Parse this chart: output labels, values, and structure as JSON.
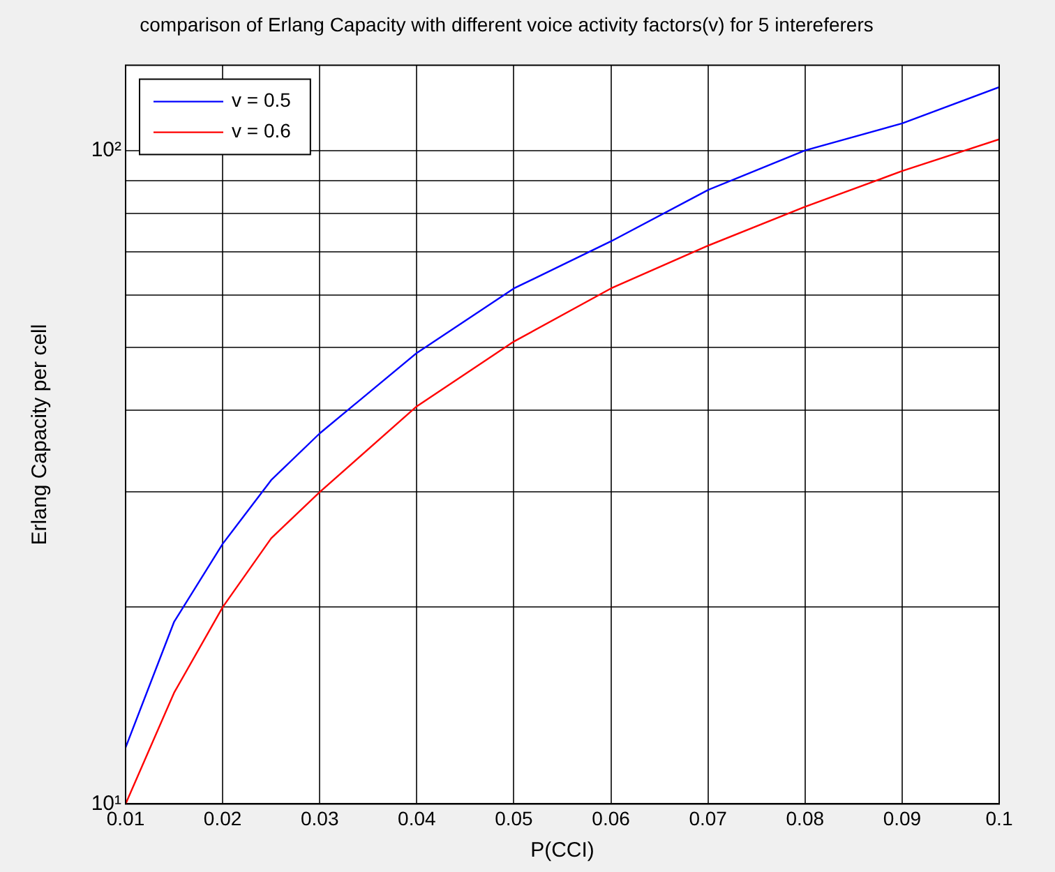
{
  "chart_data": {
    "type": "line",
    "title": "comparison of Erlang Capacity with different voice activity factors(v) for 5 intereferers",
    "xlabel": "P(CCI)",
    "ylabel": "Erlang Capacity per cell",
    "x": [
      0.01,
      0.015,
      0.02,
      0.025,
      0.03,
      0.04,
      0.05,
      0.06,
      0.07,
      0.08,
      0.09,
      0.1
    ],
    "series": [
      {
        "name": "v = 0.5",
        "color": "#0000ff",
        "values": [
          12.2,
          19,
          25,
          31.3,
          36.9,
          49,
          61.5,
          72.6,
          87,
          100,
          110,
          125
        ]
      },
      {
        "name": "v = 0.6",
        "color": "#ff0000",
        "values": [
          10,
          14.8,
          20,
          25.5,
          30,
          40.6,
          51,
          61.5,
          71.5,
          82,
          93,
          104
        ]
      }
    ],
    "xlim": [
      0.01,
      0.1
    ],
    "xticks": [
      0.01,
      0.02,
      0.03,
      0.04,
      0.05,
      0.06,
      0.07,
      0.08,
      0.09,
      0.1
    ],
    "ylim": [
      10,
      135
    ],
    "yticks": [
      {
        "value": 10,
        "label": "10¹"
      },
      {
        "value": 20,
        "label": null
      },
      {
        "value": 30,
        "label": null
      },
      {
        "value": 40,
        "label": null
      },
      {
        "value": 50,
        "label": null
      },
      {
        "value": 60,
        "label": null
      },
      {
        "value": 70,
        "label": null
      },
      {
        "value": 80,
        "label": null
      },
      {
        "value": 90,
        "label": null
      },
      {
        "value": 100,
        "label": "10²"
      }
    ],
    "log": "y",
    "grid": true,
    "legend": "top left",
    "line_style": "solid",
    "marker": "none"
  }
}
